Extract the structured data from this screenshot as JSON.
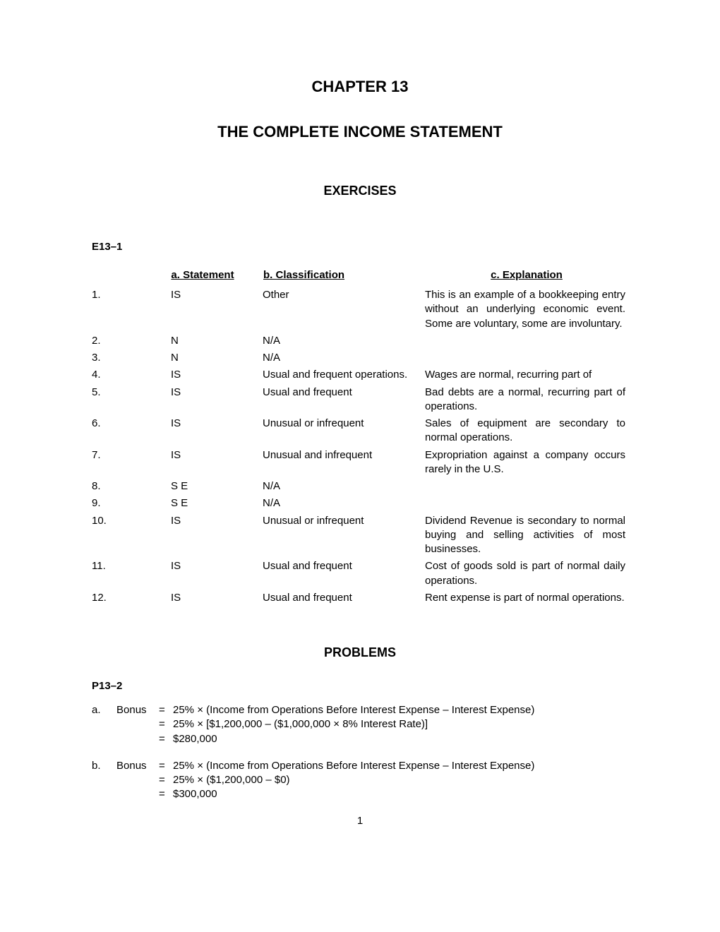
{
  "chapter_title": "CHAPTER 13",
  "subtitle": "THE COMPLETE INCOME STATEMENT",
  "exercises_header": "EXERCISES",
  "exercise_label": "E13–1",
  "headers": {
    "statement": "a. Statement",
    "classification": "b. Classification",
    "explanation": "c. Explanation"
  },
  "rows": [
    {
      "num": "1.",
      "stmt": "IS",
      "class": "Other",
      "exp": "This is an example of a bookkeeping entry without an underlying economic event. Some are voluntary, some are involuntary."
    },
    {
      "num": "2.",
      "stmt": "N",
      "class": "N/A",
      "exp": ""
    },
    {
      "num": "3.",
      "stmt": "N",
      "class": "N/A",
      "exp": ""
    },
    {
      "num": "4.",
      "stmt": "IS",
      "class": "Usual and frequent operations.",
      "exp": "Wages are normal, recurring part of"
    },
    {
      "num": "5.",
      "stmt": "IS",
      "class": "Usual and frequent",
      "exp": "Bad debts are a normal, recurring part of operations."
    },
    {
      "num": "6.",
      "stmt": "IS",
      "class": "Unusual or infrequent",
      "exp": "Sales of equipment are secondary to normal operations."
    },
    {
      "num": "7.",
      "stmt": "IS",
      "class": "Unusual and infrequent",
      "exp": "Expropriation against a company occurs rarely in the U.S."
    },
    {
      "num": "8.",
      "stmt": "S E",
      "class": "N/A",
      "exp": ""
    },
    {
      "num": "9.",
      "stmt": "S E",
      "class": "N/A",
      "exp": ""
    },
    {
      "num": "10.",
      "stmt": "IS",
      "class": "Unusual or infrequent",
      "exp": "Dividend Revenue is secondary to normal buying and selling activities of most businesses."
    },
    {
      "num": "11.",
      "stmt": "IS",
      "class": "Usual and frequent",
      "exp": "Cost of goods sold is part of normal daily operations."
    },
    {
      "num": "12.",
      "stmt": "IS",
      "class": "Usual and frequent",
      "exp": "Rent expense is part of normal operations."
    }
  ],
  "problems_header": "PROBLEMS",
  "problem_label": "P13–2",
  "problem_a": {
    "prefix": "a.",
    "label": "Bonus",
    "line1": "25% × (Income from Operations Before Interest Expense – Interest Expense)",
    "line2": "25% × [$1,200,000 – ($1,000,000 × 8% Interest Rate)]",
    "line3": "$280,000"
  },
  "problem_b": {
    "prefix": "b.",
    "label": "Bonus",
    "line1": "25% × (Income from Operations Before Interest Expense – Interest Expense)",
    "line2": "25% × ($1,200,000 – $0)",
    "line3": "$300,000"
  },
  "page_number": "1"
}
